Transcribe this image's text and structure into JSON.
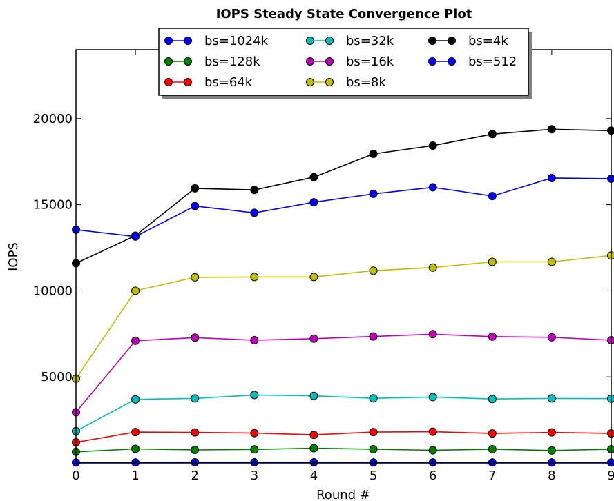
{
  "chart_data": {
    "type": "line",
    "title": "IOPS Steady State Convergence Plot",
    "xlabel": "Round #",
    "ylabel": "IOPS",
    "x": [
      0,
      1,
      2,
      3,
      4,
      5,
      6,
      7,
      8,
      9
    ],
    "xticks": [
      "0",
      "1",
      "2",
      "3",
      "4",
      "5",
      "6",
      "7",
      "8",
      "9"
    ],
    "yticks": [
      "5000",
      "10000",
      "15000",
      "20000"
    ],
    "xlim": [
      0,
      9
    ],
    "ylim": [
      0,
      24000
    ],
    "grid": false,
    "legend_position": "top-center",
    "series": [
      {
        "name": "bs=1024k",
        "color": "#0000ff",
        "values": [
          30,
          30,
          40,
          40,
          40,
          30,
          30,
          30,
          30,
          30
        ]
      },
      {
        "name": "bs=128k",
        "color": "#008000",
        "values": [
          650,
          820,
          760,
          790,
          860,
          800,
          740,
          800,
          730,
          800
        ]
      },
      {
        "name": "bs=64k",
        "color": "#ff0000",
        "values": [
          1200,
          1800,
          1780,
          1740,
          1640,
          1800,
          1820,
          1720,
          1780,
          1720
        ]
      },
      {
        "name": "bs=32k",
        "color": "#00bfbf",
        "values": [
          1850,
          3700,
          3750,
          3950,
          3900,
          3760,
          3830,
          3720,
          3750,
          3740
        ]
      },
      {
        "name": "bs=16k",
        "color": "#bf00bf",
        "values": [
          2950,
          7100,
          7280,
          7130,
          7220,
          7350,
          7480,
          7340,
          7300,
          7130
        ]
      },
      {
        "name": "bs=8k",
        "color": "#bfbf00",
        "values": [
          4900,
          10000,
          10780,
          10800,
          10800,
          11170,
          11350,
          11680,
          11680,
          12050
        ]
      },
      {
        "name": "bs=4k",
        "color": "#000000",
        "values": [
          11600,
          13200,
          15950,
          15860,
          16600,
          17950,
          18430,
          19100,
          19380,
          19300
        ]
      },
      {
        "name": "bs=512",
        "color": "#0000ff",
        "values": [
          13550,
          13150,
          14920,
          14530,
          15140,
          15630,
          16010,
          15500,
          16550,
          16510
        ]
      }
    ]
  }
}
